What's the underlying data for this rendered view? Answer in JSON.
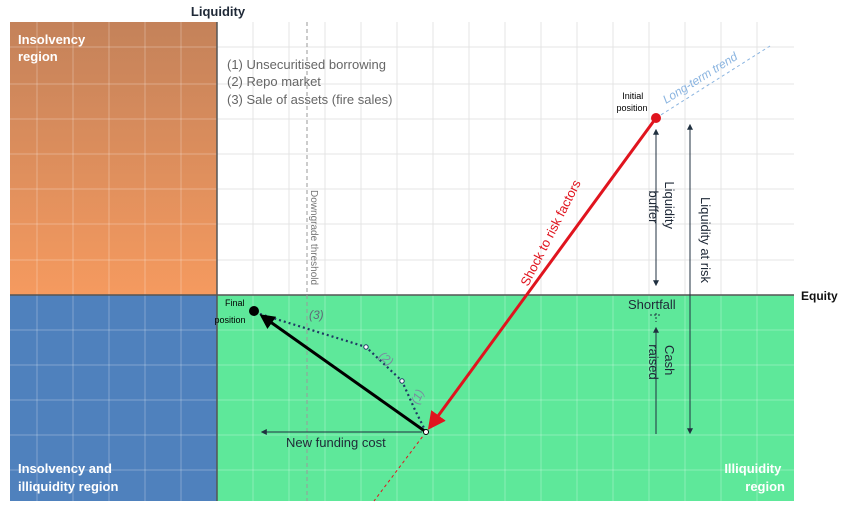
{
  "axes": {
    "y_label": "Liquidity",
    "x_label": "Equity"
  },
  "regions": {
    "insolvency": [
      "Insolvency",
      "region"
    ],
    "insolvency_illiquidity": [
      "Insolvency and",
      "illiquidity region"
    ],
    "illiquidity": [
      "Illiquidity",
      "region"
    ]
  },
  "legend": {
    "items": [
      "(1) Unsecuritised borrowing",
      "(2) Repo market",
      "(3) Sale of assets (fire sales)"
    ]
  },
  "annotations": {
    "downgrade_threshold": "Downgrade threshold",
    "long_term_trend": "Long-term trend",
    "initial_position": [
      "Initial",
      "position"
    ],
    "final_position": [
      "Final",
      "position"
    ],
    "shock": "Shock to risk factors",
    "liquidity_buffer": [
      "Liquidity",
      "buffer"
    ],
    "liquidity_at_risk": "Liquidity at risk",
    "shortfall": "Shortfall",
    "cash_raised": [
      "Cash",
      "raised"
    ],
    "new_funding_cost": "New funding cost",
    "path_labels": [
      "(1)",
      "(2)",
      "(3)"
    ]
  },
  "colors": {
    "insolvency": "#e8955a",
    "insolvency_illiquidity": "#4f81bd",
    "illiquidity": "#5ee89a",
    "shock_arrow": "#e0141e",
    "path": "#1f3864",
    "trend": "#8ab4e0"
  }
}
